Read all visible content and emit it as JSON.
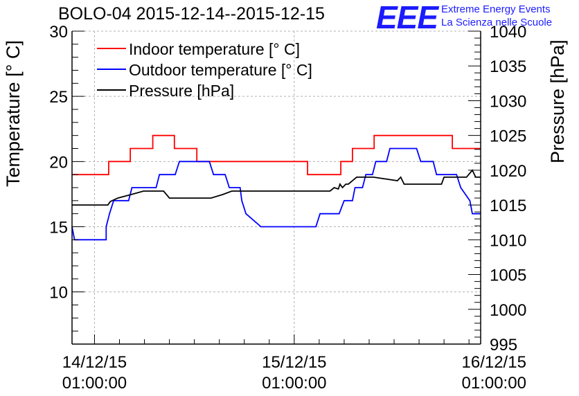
{
  "header": {
    "title": "BOLO-04 2015-12-14--2015-12-15",
    "logo": "EEE",
    "logo_line1": "Extreme Energy Events",
    "logo_line2": "La Scienza nelle Scuole"
  },
  "colors": {
    "indoor": "#ff0000",
    "outdoor": "#0000ff",
    "pressure": "#000000",
    "logo": "#1c1cff"
  },
  "chart_data": {
    "type": "line",
    "title": "BOLO-04 2015-12-14--2015-12-15",
    "xlabel": "",
    "ylabel": "Temperature [° C]",
    "ylabel_right": "Pressure [hPa]",
    "ylim": [
      6,
      30
    ],
    "ylim_right": [
      995,
      1040
    ],
    "xlim_hours": [
      -2.7,
      46.4
    ],
    "x_ticks": [
      {
        "hours": 0,
        "date": "14/12/15",
        "time": "01:00:00"
      },
      {
        "hours": 24,
        "date": "15/12/15",
        "time": "01:00:00"
      },
      {
        "hours": 48,
        "date": "16/12/15",
        "time": "01:00:00"
      }
    ],
    "y_ticks_left": [
      "10",
      "15",
      "20",
      "25",
      "30"
    ],
    "y_ticks_right": [
      "995",
      "1000",
      "1005",
      "1010",
      "1015",
      "1020",
      "1025",
      "1030",
      "1035",
      "1040"
    ],
    "grid": true,
    "legend_position": "top-left",
    "series": [
      {
        "name": "Indoor temperature [° C]",
        "axis": "left",
        "x": [
          -2.7,
          1.7,
          1.7,
          4.3,
          4.3,
          7.0,
          7.0,
          9.6,
          9.6,
          12.3,
          12.3,
          17.6,
          17.6,
          23.0,
          23.0,
          25.6,
          25.6,
          29.6,
          29.6,
          31.0,
          31.0,
          33.6,
          33.6,
          43.0,
          43.0,
          46.4
        ],
        "y": [
          19,
          19,
          20,
          20,
          21,
          21,
          22,
          22,
          21,
          21,
          20,
          20,
          20,
          20,
          20,
          20,
          19,
          19,
          20,
          20,
          21,
          21,
          22,
          22,
          21,
          21
        ]
      },
      {
        "name": "Outdoor temperature [° C]",
        "axis": "left",
        "x": [
          -2.7,
          -2.4,
          1.4,
          1.4,
          1.8,
          2.3,
          2.6,
          4.1,
          4.5,
          7.4,
          7.8,
          9.7,
          10.2,
          13.8,
          14.3,
          15.7,
          16.2,
          17.5,
          17.7,
          18.2,
          20.0,
          26.6,
          27.1,
          29.4,
          30.0,
          31.0,
          31.3,
          32.2,
          32.6,
          33.4,
          33.8,
          35.1,
          35.5,
          38.7,
          39.2,
          40.7,
          41.1,
          43.5,
          44.0,
          45.1,
          45.4,
          46.4
        ],
        "y": [
          15,
          14,
          14,
          15,
          16,
          17,
          17,
          17,
          18,
          18,
          19,
          19,
          20,
          20,
          19,
          19,
          18,
          18,
          17,
          16,
          15,
          15,
          16,
          16,
          17,
          17,
          18,
          18,
          19,
          19,
          20,
          20,
          21,
          21,
          20,
          20,
          19,
          19,
          18,
          17,
          16,
          16
        ]
      },
      {
        "name": "Pressure [hPa]",
        "axis": "right",
        "x": [
          -2.7,
          1.6,
          1.9,
          2.8,
          4.4,
          5.9,
          8.3,
          9.0,
          9.8,
          10.7,
          14.0,
          15.4,
          16.5,
          17.0,
          18.0,
          23.3,
          24.5,
          28.3,
          28.8,
          29.3,
          29.5,
          29.8,
          30.2,
          30.5,
          31.5,
          33.5,
          36.4,
          36.8,
          37.2,
          37.9,
          38.5,
          41.7,
          42.0,
          44.7,
          45.4,
          45.8,
          46.4
        ],
        "y": [
          1015,
          1015,
          1015.5,
          1016,
          1016.5,
          1017,
          1017,
          1016,
          1016,
          1016,
          1016,
          1016.5,
          1017,
          1017,
          1017,
          1017,
          1017,
          1017,
          1017.5,
          1017.3,
          1018,
          1017.5,
          1018,
          1018,
          1019,
          1019,
          1018.5,
          1019,
          1018,
          1018,
          1018,
          1018,
          1019,
          1019,
          1020,
          1019,
          1019
        ]
      }
    ]
  }
}
